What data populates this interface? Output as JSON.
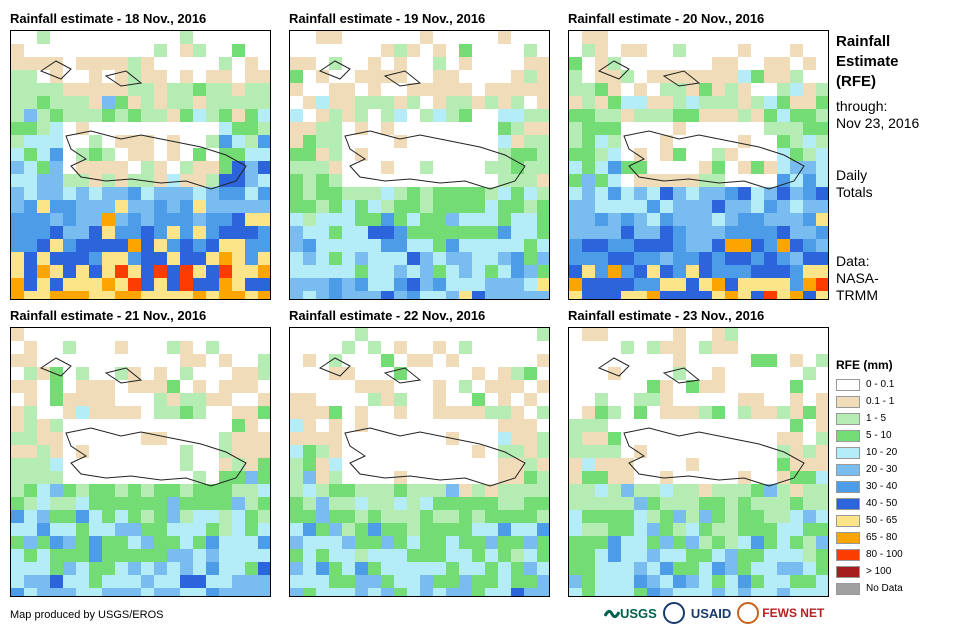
{
  "panels": [
    {
      "title": "Rainfall estimate - 18 Nov., 2016"
    },
    {
      "title": "Rainfall estimate - 19 Nov., 2016"
    },
    {
      "title": "Rainfall estimate - 20 Nov., 2016"
    },
    {
      "title": "Rainfall estimate - 21 Nov., 2016"
    },
    {
      "title": "Rainfall estimate - 22 Nov., 2016"
    },
    {
      "title": "Rainfall estimate - 23 Nov., 2016"
    }
  ],
  "side": {
    "title_lines": [
      "Rainfall",
      "Estimate",
      "(RFE)"
    ],
    "through_label": "through:",
    "through_date": "Nov 23, 2016",
    "totals_lines": [
      "Daily",
      "Totals"
    ],
    "data_lines": [
      "Data:",
      "NASA-",
      "TRMM"
    ]
  },
  "legend": {
    "title": "RFE (mm)",
    "items": [
      {
        "label": "0 - 0.1",
        "color": "#ffffff"
      },
      {
        "label": "0.1 - 1",
        "color": "#f0dcb8"
      },
      {
        "label": "1 - 5",
        "color": "#b4ecb4"
      },
      {
        "label": "5 - 10",
        "color": "#74dc74"
      },
      {
        "label": "10 - 20",
        "color": "#b4ecf8"
      },
      {
        "label": "20 - 30",
        "color": "#78bcf0"
      },
      {
        "label": "30 - 40",
        "color": "#4c9ce8"
      },
      {
        "label": "40 - 50",
        "color": "#2c64dc"
      },
      {
        "label": "50 - 65",
        "color": "#fce488"
      },
      {
        "label": "65 - 80",
        "color": "#fca400"
      },
      {
        "label": "80 - 100",
        "color": "#fc3c00"
      },
      {
        "label": "> 100",
        "color": "#a41c1c"
      },
      {
        "label": "No Data",
        "color": "#a0a0a0"
      }
    ]
  },
  "credit": "Map produced by USGS/EROS",
  "logos": {
    "usgs": "USGS",
    "usaid": "USAID",
    "fewsnet": "FEWS NET"
  }
}
